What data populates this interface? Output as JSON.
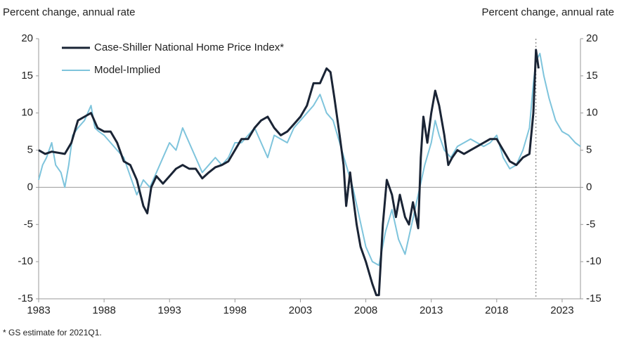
{
  "chart_data": {
    "type": "line",
    "ylabel": "Percent change, annual rate",
    "y2label": "Percent change, annual rate",
    "footnote": "* GS estimate for 2021Q1.",
    "xlim": [
      1983,
      2024.4
    ],
    "xticks": [
      1983,
      1988,
      1993,
      1998,
      2003,
      2008,
      2013,
      2018,
      2023
    ],
    "ylim": [
      -15,
      20
    ],
    "yticks": [
      -15,
      -10,
      -5,
      0,
      5,
      10,
      15,
      20
    ],
    "y2lim": [
      -15,
      20
    ],
    "y2ticks": [
      -15,
      -10,
      -5,
      0,
      5,
      10,
      15,
      20
    ],
    "vline": 2021,
    "legend": "upper left",
    "series": [
      {
        "name": "Case-Shiller National Home Price Index*",
        "color": "#1a2435",
        "x": [
          1983,
          1983.5,
          1984,
          1985,
          1985.5,
          1986,
          1986.5,
          1987,
          1987.5,
          1988,
          1988.5,
          1989,
          1989.5,
          1990,
          1990.5,
          1991,
          1991.3,
          1991.6,
          1992,
          1992.5,
          1993,
          1993.5,
          1994,
          1994.5,
          1995,
          1995.5,
          1996,
          1996.5,
          1997,
          1997.5,
          1998,
          1998.5,
          1999,
          1999.5,
          2000,
          2000.5,
          2001,
          2001.5,
          2002,
          2002.5,
          2003,
          2003.5,
          2004,
          2004.5,
          2005,
          2005.3,
          2005.6,
          2006,
          2006.3,
          2006.5,
          2006.8,
          2007,
          2007.3,
          2007.6,
          2008,
          2008.5,
          2008.8,
          2009,
          2009.3,
          2009.6,
          2010,
          2010.3,
          2010.6,
          2011,
          2011.3,
          2011.6,
          2012,
          2012.2,
          2012.4,
          2012.7,
          2013,
          2013.3,
          2013.6,
          2014,
          2014.3,
          2014.6,
          2015,
          2015.5,
          2016,
          2016.5,
          2017,
          2017.5,
          2018,
          2018.5,
          2019,
          2019.5,
          2020,
          2020.5,
          2020.8,
          2021,
          2021.2
        ],
        "values": [
          5,
          4.5,
          4.8,
          4.5,
          6,
          9,
          9.5,
          10,
          8,
          7.5,
          7.5,
          6,
          3.5,
          3,
          1,
          -2.5,
          -3.5,
          0,
          1.5,
          0.5,
          1.5,
          2.5,
          3,
          2.5,
          2.5,
          1.2,
          2,
          2.7,
          3,
          3.5,
          5,
          6.5,
          6.5,
          8,
          9,
          9.5,
          8,
          7,
          7.5,
          8.5,
          9.5,
          11,
          14,
          14,
          16,
          15.5,
          12,
          7,
          3,
          -2.5,
          2,
          -1,
          -5,
          -8,
          -10,
          -13,
          -14.5,
          -14.5,
          -5,
          1,
          -1,
          -4,
          -1,
          -4,
          -5,
          -2,
          -5.5,
          4,
          9.5,
          6,
          10,
          13,
          11,
          7,
          3,
          4,
          5,
          4.5,
          5,
          5.5,
          6,
          6.5,
          6.5,
          5,
          3.5,
          3,
          4,
          4.5,
          10,
          18.5,
          16
        ]
      },
      {
        "name": "Model-Implied",
        "color": "#7ec4dc",
        "x": [
          1983,
          1983.3,
          1983.6,
          1984,
          1984.3,
          1984.7,
          1985,
          1985.3,
          1985.6,
          1986,
          1986.5,
          1987,
          1987.3,
          1987.6,
          1988,
          1988.5,
          1989,
          1989.5,
          1990,
          1990.5,
          1991,
          1991.5,
          1992,
          1992.5,
          1993,
          1993.5,
          1994,
          1994.5,
          1995,
          1995.5,
          1996,
          1996.5,
          1997,
          1997.5,
          1998,
          1998.5,
          1999,
          1999.5,
          2000,
          2000.5,
          2001,
          2001.5,
          2002,
          2002.5,
          2003,
          2003.5,
          2004,
          2004.5,
          2005,
          2005.5,
          2006,
          2006.5,
          2007,
          2007.5,
          2008,
          2008.5,
          2009,
          2009.5,
          2010,
          2010.5,
          2011,
          2011.5,
          2012,
          2012.5,
          2013,
          2013.3,
          2013.6,
          2014,
          2014.5,
          2015,
          2015.5,
          2016,
          2016.5,
          2017,
          2017.5,
          2018,
          2018.5,
          2019,
          2019.5,
          2020,
          2020.5,
          2020.8,
          2021,
          2021.3,
          2021.6,
          2022,
          2022.5,
          2023,
          2023.5,
          2024,
          2024.4
        ],
        "values": [
          1,
          3,
          4,
          6,
          3,
          2,
          0,
          3,
          7,
          8,
          9,
          11,
          8,
          7.5,
          7,
          6,
          5,
          4,
          1.5,
          -1,
          1,
          0,
          2,
          4,
          6,
          5,
          8,
          6,
          4,
          2,
          3,
          4,
          3,
          4,
          6,
          6,
          7,
          8,
          6,
          4,
          7,
          6.5,
          6,
          8,
          9,
          10,
          11,
          12.5,
          10,
          9,
          6,
          3,
          0,
          -4,
          -8,
          -10,
          -10.5,
          -6,
          -3,
          -7,
          -9,
          -5,
          -1,
          3,
          6,
          9,
          7,
          5,
          4,
          5.5,
          6,
          6.5,
          6,
          5.5,
          6,
          7,
          4,
          2.5,
          3,
          5,
          8,
          14,
          17,
          18,
          15,
          12,
          9,
          7.5,
          7,
          6,
          5.5
        ]
      }
    ]
  }
}
